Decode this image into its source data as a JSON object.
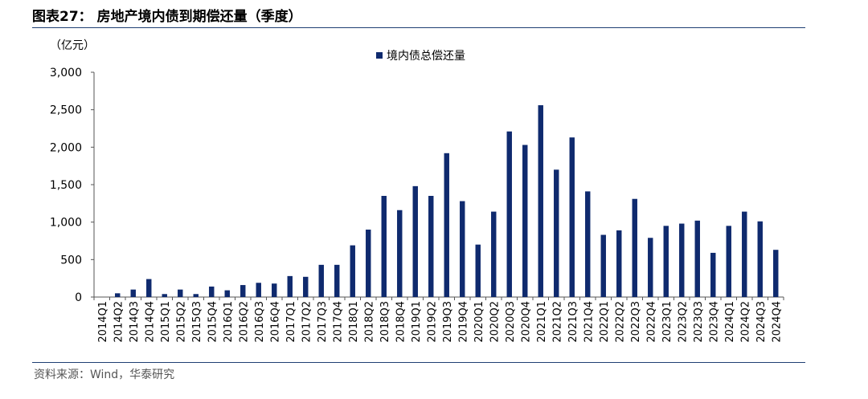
{
  "header": {
    "title": "图表27：  房地产境内债到期偿还量（季度）"
  },
  "footer": {
    "source": "资料来源：Wind，华泰研究"
  },
  "colors": {
    "bar": "#0f2a6e",
    "rule": "#1f3f73"
  },
  "chart_data": {
    "type": "bar",
    "unit": "（亿元）",
    "categories": [
      "2014Q1",
      "2014Q2",
      "2014Q3",
      "2014Q4",
      "2015Q1",
      "2015Q2",
      "2015Q3",
      "2015Q4",
      "2016Q1",
      "2016Q2",
      "2016Q3",
      "2016Q4",
      "2017Q1",
      "2017Q2",
      "2017Q3",
      "2017Q4",
      "2018Q1",
      "2018Q2",
      "2018Q3",
      "2018Q4",
      "2019Q1",
      "2019Q2",
      "2019Q3",
      "2019Q4",
      "2020Q1",
      "2020Q2",
      "2020Q3",
      "2020Q4",
      "2021Q1",
      "2021Q2",
      "2021Q3",
      "2021Q4",
      "2022Q1",
      "2022Q2",
      "2022Q3",
      "2022Q4",
      "2023Q1",
      "2023Q2",
      "2023Q3",
      "2023Q4",
      "2024Q1",
      "2024Q2",
      "2024Q3",
      "2024Q4"
    ],
    "series": [
      {
        "name": "境内债总偿还量",
        "values": [
          0,
          50,
          100,
          240,
          40,
          100,
          40,
          140,
          90,
          160,
          190,
          180,
          280,
          270,
          430,
          430,
          690,
          900,
          1350,
          1160,
          1480,
          1350,
          1920,
          1280,
          700,
          1140,
          2210,
          2030,
          2560,
          1700,
          2130,
          1410,
          830,
          890,
          1310,
          790,
          950,
          980,
          1020,
          590,
          950,
          1140,
          1010,
          630
        ]
      }
    ],
    "ylim": [
      0,
      3000
    ],
    "yticks": [
      0,
      500,
      1000,
      1500,
      2000,
      2500,
      3000
    ],
    "ytick_labels": [
      "0",
      "500",
      "1,000",
      "1,500",
      "2,000",
      "2,500",
      "3,000"
    ],
    "legend_position": "top-center",
    "grid": false
  }
}
